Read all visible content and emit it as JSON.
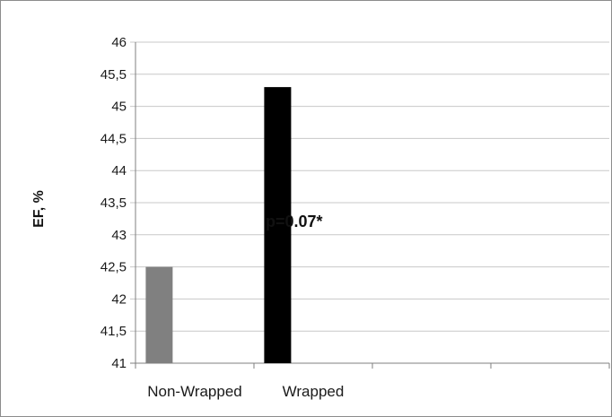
{
  "chart_data": {
    "type": "bar",
    "title": "",
    "xlabel": "",
    "ylabel": "EF, %",
    "ylim": [
      41,
      46
    ],
    "ytick_step": 0.5,
    "ytick_labels": [
      "41",
      "41,5",
      "42",
      "42,5",
      "43",
      "43,5",
      "44",
      "44,5",
      "45",
      "45,5",
      "46"
    ],
    "categories": [
      "Non-Wrapped",
      "Wrapped"
    ],
    "values": [
      42.5,
      45.3
    ],
    "bar_colors": [
      "#808080",
      "#000000"
    ],
    "grid": true,
    "annotation": "p=0.07*"
  }
}
